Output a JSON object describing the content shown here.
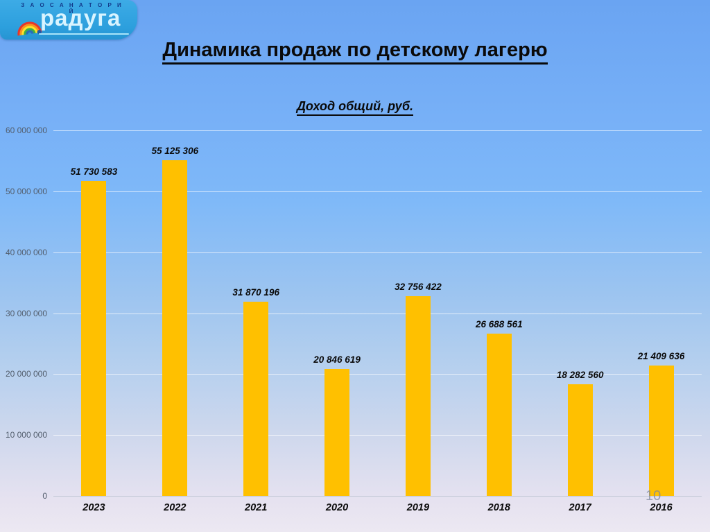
{
  "logo": {
    "company": "З А О   С А Н А Т О Р И Й",
    "brand": "радуга"
  },
  "header": {
    "title": "Динамика продаж по детскому лагерю"
  },
  "page_number": "10",
  "chart_data": {
    "type": "bar",
    "title": "Доход общий, руб.",
    "categories": [
      "2023",
      "2022",
      "2021",
      "2020",
      "2019",
      "2018",
      "2017",
      "2016"
    ],
    "values": [
      51730583,
      55125306,
      31870196,
      20846619,
      32756422,
      26688561,
      18282560,
      21409636
    ],
    "data_labels": [
      "51 730 583",
      "55 125 306",
      "31 870 196",
      "20 846 619",
      "32 756 422",
      "26 688 561",
      "18 282 560",
      "21 409 636"
    ],
    "y_ticks": [
      "60 000 000",
      "50 000 000",
      "40 000 000",
      "30 000 000",
      "20 000 000",
      "10 000 000",
      "0"
    ],
    "ylim": [
      0,
      60000000
    ],
    "grid": true,
    "legend": false,
    "bar_color": "#FFC000",
    "gridline_color": "rgba(255,255,255,0.68)",
    "background_gradient": [
      "#6AA4F2",
      "#7FB9F8",
      "#A9CBEE",
      "#ECE8F2"
    ]
  }
}
